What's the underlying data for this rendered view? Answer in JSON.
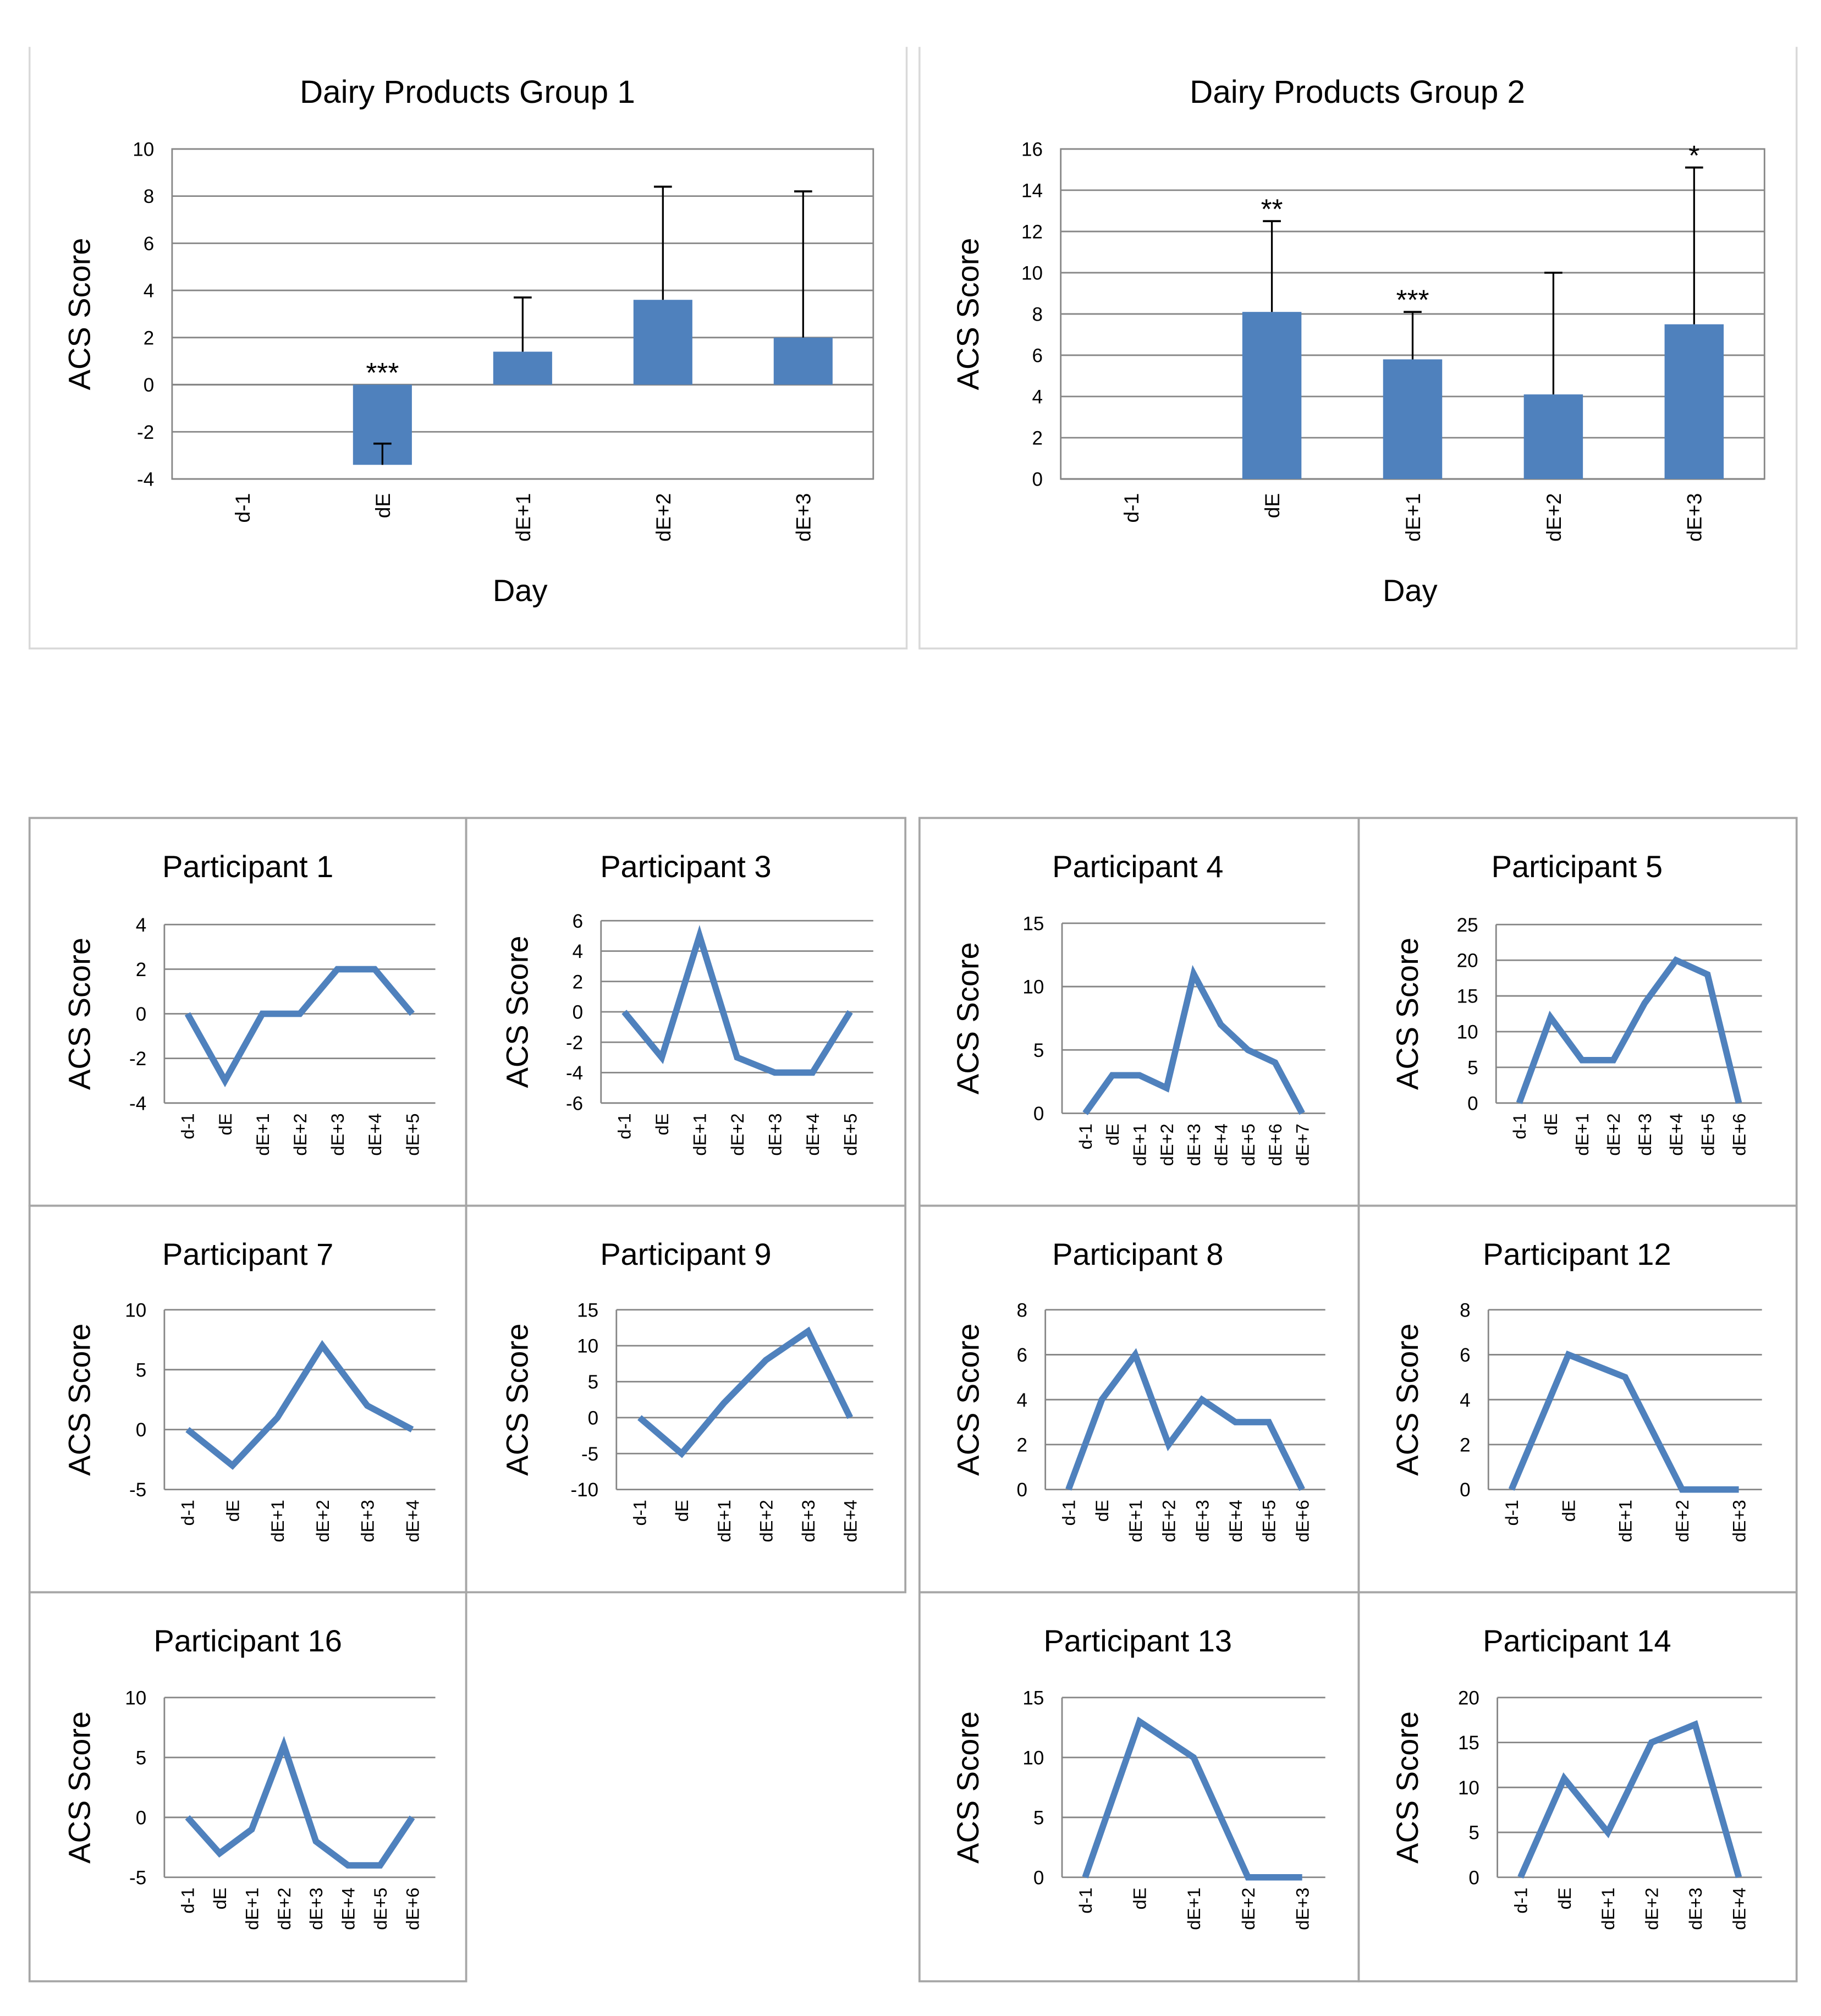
{
  "colors": {
    "bar": "#4f81bd",
    "line": "#4f81bd",
    "frame": "#bfbfbf",
    "axis": "#7f7f7f",
    "text": "#000000"
  },
  "chart_data": [
    {
      "type": "bar",
      "title": "Dairy Products Group 1",
      "xlabel": "Day",
      "ylabel": "ACS Score",
      "categories": [
        "d-1",
        "dE",
        "dE+1",
        "dE+2",
        "dE+3"
      ],
      "values": [
        0,
        -3.4,
        1.4,
        3.6,
        2.0
      ],
      "error_bars": [
        0,
        0.9,
        2.3,
        4.8,
        6.2
      ],
      "error_direction": [
        "up",
        "up",
        "up",
        "up",
        "up"
      ],
      "significance": [
        "",
        "***",
        "",
        "",
        ""
      ],
      "ylim": [
        -4,
        10
      ],
      "yticks": [
        -4,
        -2,
        0,
        2,
        4,
        6,
        8,
        10
      ],
      "grid": true
    },
    {
      "type": "bar",
      "title": "Dairy Products Group 2",
      "xlabel": "Day",
      "ylabel": "ACS Score",
      "categories": [
        "d-1",
        "dE",
        "dE+1",
        "dE+2",
        "dE+3"
      ],
      "values": [
        0,
        8.1,
        5.8,
        4.1,
        7.5
      ],
      "error_bars": [
        0,
        4.4,
        2.3,
        5.9,
        7.6
      ],
      "error_direction": [
        "up",
        "up",
        "up",
        "up",
        "up"
      ],
      "significance": [
        "",
        "**",
        "***",
        "",
        "*"
      ],
      "ylim": [
        0,
        16
      ],
      "yticks": [
        0,
        2,
        4,
        6,
        8,
        10,
        12,
        14,
        16
      ],
      "grid": true
    },
    {
      "type": "line",
      "title": "Participant 1",
      "ylabel": "ACS Score",
      "categories": [
        "d-1",
        "dE",
        "dE+1",
        "dE+2",
        "dE+3",
        "dE+4",
        "dE+5"
      ],
      "values": [
        0,
        -3,
        0,
        0,
        2,
        2,
        0
      ],
      "ylim": [
        -4,
        4
      ],
      "yticks": [
        -4,
        -2,
        0,
        2,
        4
      ]
    },
    {
      "type": "line",
      "title": "Participant 3",
      "ylabel": "ACS Score",
      "categories": [
        "d-1",
        "dE",
        "dE+1",
        "dE+2",
        "dE+3",
        "dE+4",
        "dE+5"
      ],
      "values": [
        0,
        -3,
        5,
        -3,
        -4,
        -4,
        0
      ],
      "ylim": [
        -6,
        6
      ],
      "yticks": [
        -6,
        -4,
        -2,
        0,
        2,
        4,
        6
      ]
    },
    {
      "type": "line",
      "title": "Participant 4",
      "ylabel": "ACS Score",
      "categories": [
        "d-1",
        "dE",
        "dE+1",
        "dE+2",
        "dE+3",
        "dE+4",
        "dE+5",
        "dE+6",
        "dE+7"
      ],
      "values": [
        0,
        3,
        3,
        2,
        11,
        7,
        5,
        4,
        0
      ],
      "ylim": [
        0,
        15
      ],
      "yticks": [
        0,
        5,
        10,
        15
      ]
    },
    {
      "type": "line",
      "title": "Participant 5",
      "ylabel": "ACS Score",
      "categories": [
        "d-1",
        "dE",
        "dE+1",
        "dE+2",
        "dE+3",
        "dE+4",
        "dE+5",
        "dE+6"
      ],
      "values": [
        0,
        12,
        6,
        6,
        14,
        20,
        18,
        0
      ],
      "ylim": [
        0,
        25
      ],
      "yticks": [
        0,
        5,
        10,
        15,
        20,
        25
      ]
    },
    {
      "type": "line",
      "title": "Participant 7",
      "ylabel": "ACS Score",
      "categories": [
        "d-1",
        "dE",
        "dE+1",
        "dE+2",
        "dE+3",
        "dE+4"
      ],
      "values": [
        0,
        -3,
        1,
        7,
        2,
        0
      ],
      "ylim": [
        -5,
        10
      ],
      "yticks": [
        -5,
        0,
        5,
        10
      ]
    },
    {
      "type": "line",
      "title": "Participant 9",
      "ylabel": "ACS Score",
      "categories": [
        "d-1",
        "dE",
        "dE+1",
        "dE+2",
        "dE+3",
        "dE+4"
      ],
      "values": [
        0,
        -5,
        2,
        8,
        12,
        0
      ],
      "ylim": [
        -10,
        15
      ],
      "yticks": [
        -10,
        -5,
        0,
        5,
        10,
        15
      ]
    },
    {
      "type": "line",
      "title": "Participant 8",
      "ylabel": "ACS Score",
      "categories": [
        "d-1",
        "dE",
        "dE+1",
        "dE+2",
        "dE+3",
        "dE+4",
        "dE+5",
        "dE+6"
      ],
      "values": [
        0,
        4,
        6,
        2,
        4,
        3,
        3,
        0
      ],
      "ylim": [
        0,
        8
      ],
      "yticks": [
        0,
        2,
        4,
        6,
        8
      ]
    },
    {
      "type": "line",
      "title": "Participant 12",
      "ylabel": "ACS Score",
      "categories": [
        "d-1",
        "dE",
        "dE+1",
        "dE+2",
        "dE+3"
      ],
      "values": [
        0,
        6,
        5,
        0,
        0
      ],
      "ylim": [
        0,
        8
      ],
      "yticks": [
        0,
        2,
        4,
        6,
        8
      ]
    },
    {
      "type": "line",
      "title": "Participant 16",
      "ylabel": "ACS Score",
      "categories": [
        "d-1",
        "dE",
        "dE+1",
        "dE+2",
        "dE+3",
        "dE+4",
        "dE+5",
        "dE+6"
      ],
      "values": [
        0,
        -3,
        -1,
        6,
        -2,
        -4,
        -4,
        0
      ],
      "ylim": [
        -5,
        10
      ],
      "yticks": [
        -5,
        0,
        5,
        10
      ]
    },
    {
      "type": "line",
      "title": "Participant 13",
      "ylabel": "ACS Score",
      "categories": [
        "d-1",
        "dE",
        "dE+1",
        "dE+2",
        "dE+3"
      ],
      "values": [
        0,
        13,
        10,
        0,
        0
      ],
      "ylim": [
        0,
        15
      ],
      "yticks": [
        0,
        5,
        10,
        15
      ]
    },
    {
      "type": "line",
      "title": "Participant 14",
      "ylabel": "ACS Score",
      "categories": [
        "d-1",
        "dE",
        "dE+1",
        "dE+2",
        "dE+3",
        "dE+4"
      ],
      "values": [
        0,
        11,
        5,
        15,
        17,
        0
      ],
      "ylim": [
        0,
        20
      ],
      "yticks": [
        0,
        5,
        10,
        15,
        20
      ]
    }
  ]
}
